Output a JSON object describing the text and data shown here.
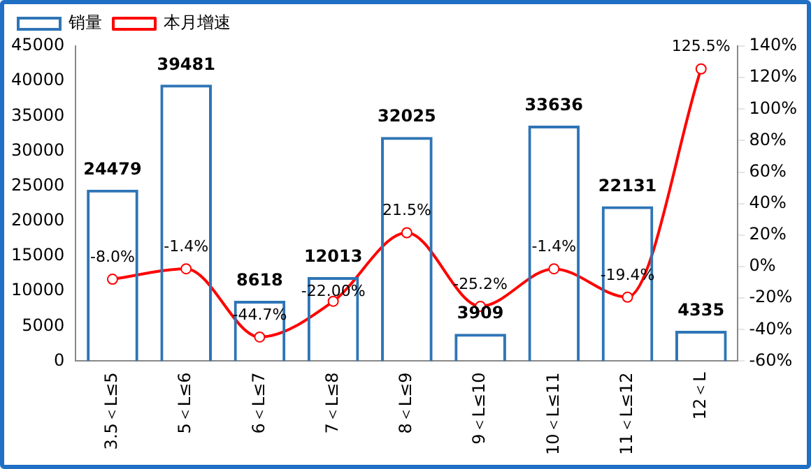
{
  "chart_data": {
    "type": "bar",
    "categories": [
      "3.5＜L≤5",
      "5＜L≤6",
      "6＜L≤7",
      "7＜L≤8",
      "8＜L≤9",
      "9＜L≤10",
      "10＜L≤11",
      "11＜L≤12",
      "12＜L"
    ],
    "series": [
      {
        "name": "销量",
        "color": "#2e75b6",
        "values": [
          24479,
          39481,
          8618,
          12013,
          32025,
          3909,
          33636,
          22131,
          4335
        ],
        "data_labels": true
      },
      {
        "name": "本月增速",
        "type": "line",
        "axis": "y2",
        "color": "#ff0000",
        "marker": "circle",
        "values": [
          -8.0,
          -1.4,
          -44.7,
          -22.0,
          21.5,
          -25.2,
          -1.4,
          -19.4,
          125.5
        ],
        "value_labels": [
          "-8.0%",
          "-1.4%",
          "-44.7%",
          "-22.00%",
          "21.5%",
          "-25.2%",
          "-1.4%",
          "-19.4%",
          "125.5%"
        ]
      }
    ],
    "ylim": [
      0,
      45000
    ],
    "yticks": [
      0,
      5000,
      10000,
      15000,
      20000,
      25000,
      30000,
      35000,
      40000,
      45000
    ],
    "y2lim": [
      -60,
      140
    ],
    "y2ticks": [
      {
        "value": -60,
        "label": "-60%"
      },
      {
        "value": -40,
        "label": "-40%"
      },
      {
        "value": -20,
        "label": "-20%"
      },
      {
        "value": 0,
        "label": "0%"
      },
      {
        "value": 20,
        "label": "20%"
      },
      {
        "value": 40,
        "label": "40%"
      },
      {
        "value": 60,
        "label": "60%"
      },
      {
        "value": 80,
        "label": "80%"
      },
      {
        "value": 100,
        "label": "100%"
      },
      {
        "value": 120,
        "label": "120%"
      },
      {
        "value": 140,
        "label": "140%"
      }
    ],
    "grid": false,
    "legend": "top left"
  }
}
